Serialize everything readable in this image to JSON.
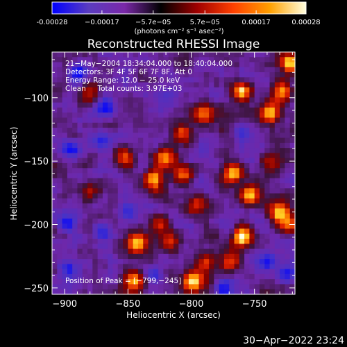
{
  "chart_data": {
    "type": "heatmap",
    "title": "Reconstructed RHESSI Image",
    "xlabel": "Heliocentric X (arcsec)",
    "ylabel": "Heliocentric Y (arcsec)",
    "xlim": [
      -910,
      -718
    ],
    "ylim": [
      -255,
      -64
    ],
    "xticks": [
      -900,
      -850,
      -800,
      -750
    ],
    "xtick_labels": [
      "−900",
      "−850",
      "−800",
      "−750"
    ],
    "yticks": [
      -100,
      -150,
      -200,
      -250
    ],
    "ytick_labels": [
      "−100",
      "−150",
      "−200",
      "−250"
    ],
    "colorbar": {
      "ticks": [
        -0.00028,
        -0.00017,
        -5.7e-05,
        5.7e-05,
        0.00017,
        0.00028
      ],
      "tick_labels": [
        "-0.00028",
        "−0.00017",
        "−5.7e−05",
        "5.7e−05",
        "0.00017",
        "0.00028"
      ],
      "range": [
        -0.00028,
        0.00028
      ],
      "unit_label": "(photons cm⁻² s⁻¹ asec⁻²)",
      "colors": [
        "#0000ff",
        "#5a3cc0",
        "#7a28a8",
        "#000000",
        "#a00000",
        "#ff4000",
        "#ffa000",
        "#ffffe0"
      ]
    },
    "info_lines": [
      "21−May−2004 18:34:04.000 to 18:40:04.000",
      "Detectors: 3F 4F 5F 6F 7F 8F, Att 0",
      "Energy Range: 12.0 − 25.0 keV",
      "Clean     Total counts: 3.97E+03"
    ],
    "peak_label": "Position of Peak = [−799,−245]",
    "peak": [
      -799,
      -245
    ],
    "hotspots": [
      {
        "x": -722,
        "y": -72,
        "v": 1.0
      },
      {
        "x": -728,
        "y": -95,
        "v": 0.85
      },
      {
        "x": -738,
        "y": -112,
        "v": 0.8
      },
      {
        "x": -760,
        "y": -95,
        "v": 0.95
      },
      {
        "x": -790,
        "y": -113,
        "v": 0.7
      },
      {
        "x": -808,
        "y": -127,
        "v": 0.65
      },
      {
        "x": -822,
        "y": -148,
        "v": 0.8
      },
      {
        "x": -853,
        "y": -147,
        "v": 0.5
      },
      {
        "x": -767,
        "y": -160,
        "v": 0.8
      },
      {
        "x": -753,
        "y": -177,
        "v": 0.95
      },
      {
        "x": -730,
        "y": -190,
        "v": 0.8
      },
      {
        "x": -722,
        "y": -200,
        "v": 0.7
      },
      {
        "x": -740,
        "y": -150,
        "v": 0.5
      },
      {
        "x": -808,
        "y": -160,
        "v": 0.7
      },
      {
        "x": -830,
        "y": -165,
        "v": 0.85
      },
      {
        "x": -795,
        "y": -185,
        "v": 0.6
      },
      {
        "x": -825,
        "y": -200,
        "v": 0.5
      },
      {
        "x": -843,
        "y": -215,
        "v": 0.9
      },
      {
        "x": -818,
        "y": -213,
        "v": 0.6
      },
      {
        "x": -760,
        "y": -210,
        "v": 0.95
      },
      {
        "x": -770,
        "y": -230,
        "v": 0.7
      },
      {
        "x": -799,
        "y": -245,
        "v": 1.0
      },
      {
        "x": -788,
        "y": -230,
        "v": 0.65
      },
      {
        "x": -845,
        "y": -245,
        "v": 0.8
      },
      {
        "x": -880,
        "y": -95,
        "v": 0.35
      },
      {
        "x": -880,
        "y": -175,
        "v": 0.3
      }
    ],
    "coldspots": [
      {
        "x": -890,
        "y": -80,
        "v": 0.6
      },
      {
        "x": -868,
        "y": -108,
        "v": 0.8
      },
      {
        "x": -870,
        "y": -135,
        "v": 0.5
      },
      {
        "x": -895,
        "y": -140,
        "v": 0.5
      },
      {
        "x": -898,
        "y": -200,
        "v": 0.55
      },
      {
        "x": -870,
        "y": -205,
        "v": 0.6
      },
      {
        "x": -898,
        "y": -235,
        "v": 0.6
      },
      {
        "x": -850,
        "y": -190,
        "v": 0.5
      },
      {
        "x": -760,
        "y": -128,
        "v": 0.55
      },
      {
        "x": -775,
        "y": -250,
        "v": 0.55
      },
      {
        "x": -740,
        "y": -230,
        "v": 0.5
      },
      {
        "x": -725,
        "y": -240,
        "v": 0.55
      },
      {
        "x": -830,
        "y": -240,
        "v": 0.35
      }
    ]
  },
  "timestamp": "30−Apr−2022 23:24"
}
